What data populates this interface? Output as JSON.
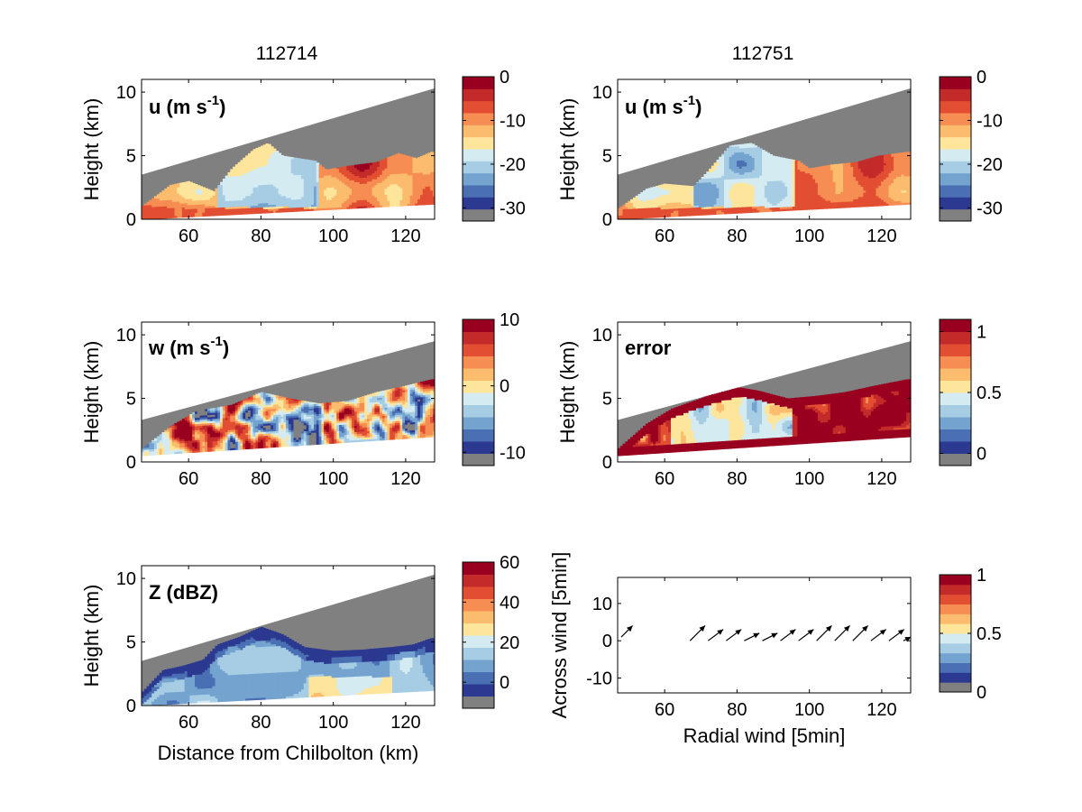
{
  "column_titles": [
    "112714",
    "112751"
  ],
  "x_ticks": [
    "60",
    "80",
    "100",
    "120"
  ],
  "height_ticks": [
    "0",
    "5",
    "10"
  ],
  "across_ticks": [
    "-10",
    "0",
    "10"
  ],
  "ylabel_height": "Height (km)",
  "xlabel_distance": "Distance from Chilbolton (km)",
  "xlabel_radial": "Radial wind [5min]",
  "ylabel_across": "Across wind [5min]",
  "colors": {
    "masked_gray": "#808080",
    "colormap": [
      "#2b3990",
      "#4a6fb3",
      "#74a3d0",
      "#a6cde4",
      "#d4ebf2",
      "#fde59c",
      "#fcbc6e",
      "#f68d52",
      "#e24e32",
      "#c32a2a",
      "#99001f"
    ]
  },
  "panels": [
    {
      "id": "u-112714",
      "label_main": "u (m s",
      "label_sup": "-1",
      "label_end": ")",
      "cbar_ticks": [
        "0",
        "-10",
        "-20",
        "-30"
      ]
    },
    {
      "id": "u-112751",
      "label_main": "u (m s",
      "label_sup": "-1",
      "label_end": ")",
      "cbar_ticks": [
        "0",
        "-10",
        "-20",
        "-30"
      ]
    },
    {
      "id": "w-112714",
      "label_main": "w (m s",
      "label_sup": "-1",
      "label_end": ")",
      "cbar_ticks": [
        "10",
        "0",
        "-10"
      ]
    },
    {
      "id": "error-112751",
      "label_main": "error",
      "label_sup": "",
      "label_end": "",
      "cbar_ticks": [
        "1",
        "0.5",
        "0"
      ]
    },
    {
      "id": "Z-112714",
      "label_main": "Z (dBZ)",
      "label_sup": "",
      "label_end": "",
      "cbar_ticks": [
        "60",
        "40",
        "20",
        "0"
      ]
    },
    {
      "id": "wind-vectors",
      "label_main": "",
      "label_sup": "",
      "label_end": "",
      "cbar_ticks": [
        "1",
        "0.5",
        "0"
      ]
    }
  ],
  "chart_data": [
    {
      "type": "heatmap",
      "title": "112714",
      "field": "u (m s-1)",
      "xlabel": "",
      "ylabel": "Height (km)",
      "xlim": [
        47,
        128
      ],
      "ylim": [
        0,
        11
      ],
      "clim": [
        -33,
        0
      ],
      "scan_top_km": {
        "x": [
          47,
          128
        ],
        "y": [
          3.5,
          10.3
        ]
      },
      "scan_bottom_km": {
        "x": [
          47,
          128
        ],
        "y": [
          0,
          1.2
        ]
      },
      "echo_top_km": [
        [
          47,
          1.0
        ],
        [
          55,
          2.7
        ],
        [
          60,
          3.0
        ],
        [
          67,
          2.2
        ],
        [
          72,
          4.0
        ],
        [
          78,
          5.5
        ],
        [
          82,
          6.0
        ],
        [
          86,
          5.0
        ],
        [
          95,
          4.6
        ],
        [
          98,
          3.9
        ],
        [
          104,
          4.2
        ],
        [
          112,
          4.5
        ],
        [
          118,
          5.2
        ],
        [
          123,
          4.8
        ],
        [
          127,
          5.3
        ]
      ],
      "approx_values": "-5 to -15 over most of the echo, near -20 at 70-95 km, -10 to -5 below 1 km"
    },
    {
      "type": "heatmap",
      "title": "112751",
      "field": "u (m s-1)",
      "xlabel": "",
      "ylabel": "Height (km)",
      "xlim": [
        47,
        128
      ],
      "ylim": [
        0,
        11
      ],
      "clim": [
        -33,
        0
      ],
      "scan_top_km": {
        "x": [
          47,
          128
        ],
        "y": [
          3.5,
          10.3
        ]
      },
      "scan_bottom_km": {
        "x": [
          47,
          128
        ],
        "y": [
          0,
          1.2
        ]
      },
      "echo_top_km": [
        [
          47,
          0.8
        ],
        [
          55,
          2.4
        ],
        [
          60,
          2.8
        ],
        [
          68,
          2.6
        ],
        [
          72,
          3.8
        ],
        [
          78,
          5.8
        ],
        [
          84,
          6.0
        ],
        [
          90,
          5.0
        ],
        [
          97,
          4.6
        ],
        [
          100,
          4.0
        ],
        [
          106,
          4.3
        ],
        [
          113,
          4.5
        ],
        [
          119,
          5.0
        ],
        [
          127,
          5.3
        ]
      ],
      "approx_values": "-5 to -15 over most of the echo, near -20 at 70-95 km, -10 to -5 below 1 km"
    },
    {
      "type": "heatmap",
      "field": "w (m s-1)",
      "xlabel": "",
      "ylabel": "Height (km)",
      "xlim": [
        47,
        128
      ],
      "ylim": [
        0,
        11
      ],
      "clim": [
        -12,
        10
      ],
      "scan_top_km": {
        "x": [
          47,
          128
        ],
        "y": [
          3.3,
          9.5
        ]
      },
      "scan_bottom_km": {
        "x": [
          47,
          128
        ],
        "y": [
          0.5,
          2.0
        ]
      },
      "echo_top_km": [
        [
          47,
          1.0
        ],
        [
          55,
          2.8
        ],
        [
          62,
          4.0
        ],
        [
          72,
          4.5
        ],
        [
          80,
          5.5
        ],
        [
          88,
          5.0
        ],
        [
          96,
          4.6
        ],
        [
          104,
          4.8
        ],
        [
          112,
          5.5
        ],
        [
          120,
          6.0
        ],
        [
          127,
          6.5
        ]
      ],
      "approx_values": "alternating updrafts up to 10 and downdrafts to -10 across the echo"
    },
    {
      "type": "heatmap",
      "field": "error",
      "xlabel": "",
      "ylabel": "Height (km)",
      "xlim": [
        47,
        128
      ],
      "ylim": [
        0,
        11
      ],
      "clim": [
        -0.1,
        1.1
      ],
      "scan_top_km": {
        "x": [
          47,
          128
        ],
        "y": [
          3.3,
          9.5
        ]
      },
      "scan_bottom_km": {
        "x": [
          47,
          128
        ],
        "y": [
          0.5,
          2.0
        ]
      },
      "echo_top_km": [
        [
          47,
          1.0
        ],
        [
          55,
          3.0
        ],
        [
          62,
          4.2
        ],
        [
          70,
          5.0
        ],
        [
          78,
          6.0
        ],
        [
          86,
          5.6
        ],
        [
          94,
          5.0
        ],
        [
          102,
          5.2
        ],
        [
          110,
          5.5
        ],
        [
          118,
          6.0
        ],
        [
          127,
          6.5
        ]
      ],
      "approx_values": "above 1 along echo edges, 0.3-0.6 in the interior at 65-95 km"
    },
    {
      "type": "heatmap",
      "field": "Z (dBZ)",
      "xlabel": "Distance from Chilbolton (km)",
      "ylabel": "Height (km)",
      "xlim": [
        47,
        128
      ],
      "ylim": [
        0,
        11
      ],
      "clim": [
        -13,
        60
      ],
      "scan_top_km": {
        "x": [
          47,
          128
        ],
        "y": [
          3.5,
          10.3
        ]
      },
      "scan_bottom_km": {
        "x": [
          47,
          128
        ],
        "y": [
          0,
          1.2
        ]
      },
      "echo_top_km": [
        [
          47,
          1.0
        ],
        [
          53,
          2.8
        ],
        [
          58,
          3.1
        ],
        [
          64,
          3.6
        ],
        [
          68,
          4.8
        ],
        [
          74,
          5.4
        ],
        [
          80,
          6.2
        ],
        [
          86,
          5.6
        ],
        [
          92,
          4.6
        ],
        [
          100,
          4.3
        ],
        [
          108,
          4.4
        ],
        [
          116,
          4.6
        ],
        [
          122,
          4.8
        ],
        [
          127,
          5.3
        ]
      ],
      "approx_values": "5-20 dBZ over most of the echo, 25-30 dBZ at 95-115 km below 2 km, lower values at the edges"
    },
    {
      "type": "scatter",
      "subtype": "quiver",
      "xlabel": "Radial wind [5min]",
      "ylabel": "Across wind [5min]",
      "xlim": [
        47,
        128
      ],
      "ylim": [
        -14,
        17
      ],
      "clim": [
        0,
        1
      ],
      "points": [
        {
          "x": 48,
          "y": 1,
          "u": 3,
          "v": 3
        },
        {
          "x": 67,
          "y": 0,
          "u": 4,
          "v": 4
        },
        {
          "x": 72,
          "y": 0,
          "u": 4,
          "v": 3
        },
        {
          "x": 77,
          "y": 0,
          "u": 4,
          "v": 3
        },
        {
          "x": 82,
          "y": 0,
          "u": 4,
          "v": 2
        },
        {
          "x": 87,
          "y": 0,
          "u": 4,
          "v": 2
        },
        {
          "x": 92,
          "y": 0,
          "u": 4,
          "v": 3
        },
        {
          "x": 97,
          "y": 0,
          "u": 4,
          "v": 3
        },
        {
          "x": 102,
          "y": 0,
          "u": 4,
          "v": 4
        },
        {
          "x": 107,
          "y": 0,
          "u": 4,
          "v": 4
        },
        {
          "x": 112,
          "y": 0,
          "u": 4,
          "v": 4
        },
        {
          "x": 117,
          "y": 0,
          "u": 4,
          "v": 3
        },
        {
          "x": 122,
          "y": 0,
          "u": 4,
          "v": 3
        },
        {
          "x": 126,
          "y": 0,
          "u": 2,
          "v": 1
        }
      ]
    }
  ]
}
